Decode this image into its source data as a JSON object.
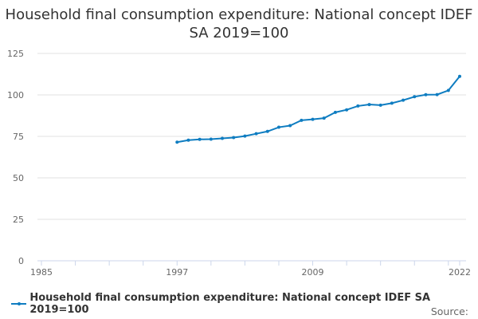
{
  "chart_data": {
    "type": "line",
    "title": "Household final consumption expenditure: National concept IDEF SA 2019=100",
    "xlabel": "",
    "ylabel": "",
    "xlim": [
      1985,
      2022
    ],
    "ylim": [
      0,
      125
    ],
    "x_ticks": [
      "1985",
      "1997",
      "2009",
      "2022"
    ],
    "y_ticks": [
      "0",
      "25",
      "50",
      "75",
      "100",
      "125"
    ],
    "grid": true,
    "legend_position": "bottom",
    "series": [
      {
        "name": "Household final consumption expenditure: National concept IDEF SA 2019=100",
        "color": "#0f7dc1",
        "x": [
          1997,
          1998,
          1999,
          2000,
          2001,
          2002,
          2003,
          2004,
          2005,
          2006,
          2007,
          2008,
          2009,
          2010,
          2011,
          2012,
          2013,
          2014,
          2015,
          2016,
          2017,
          2018,
          2019,
          2020,
          2021,
          2022
        ],
        "values": [
          71.5,
          72.7,
          73.2,
          73.3,
          73.8,
          74.3,
          75.2,
          76.6,
          78.0,
          80.5,
          81.5,
          84.7,
          85.3,
          86.0,
          89.5,
          91.0,
          93.3,
          94.2,
          93.8,
          95.0,
          96.8,
          98.9,
          100.1,
          100.2,
          102.7,
          111.2
        ]
      }
    ]
  },
  "source_label": "Source:"
}
